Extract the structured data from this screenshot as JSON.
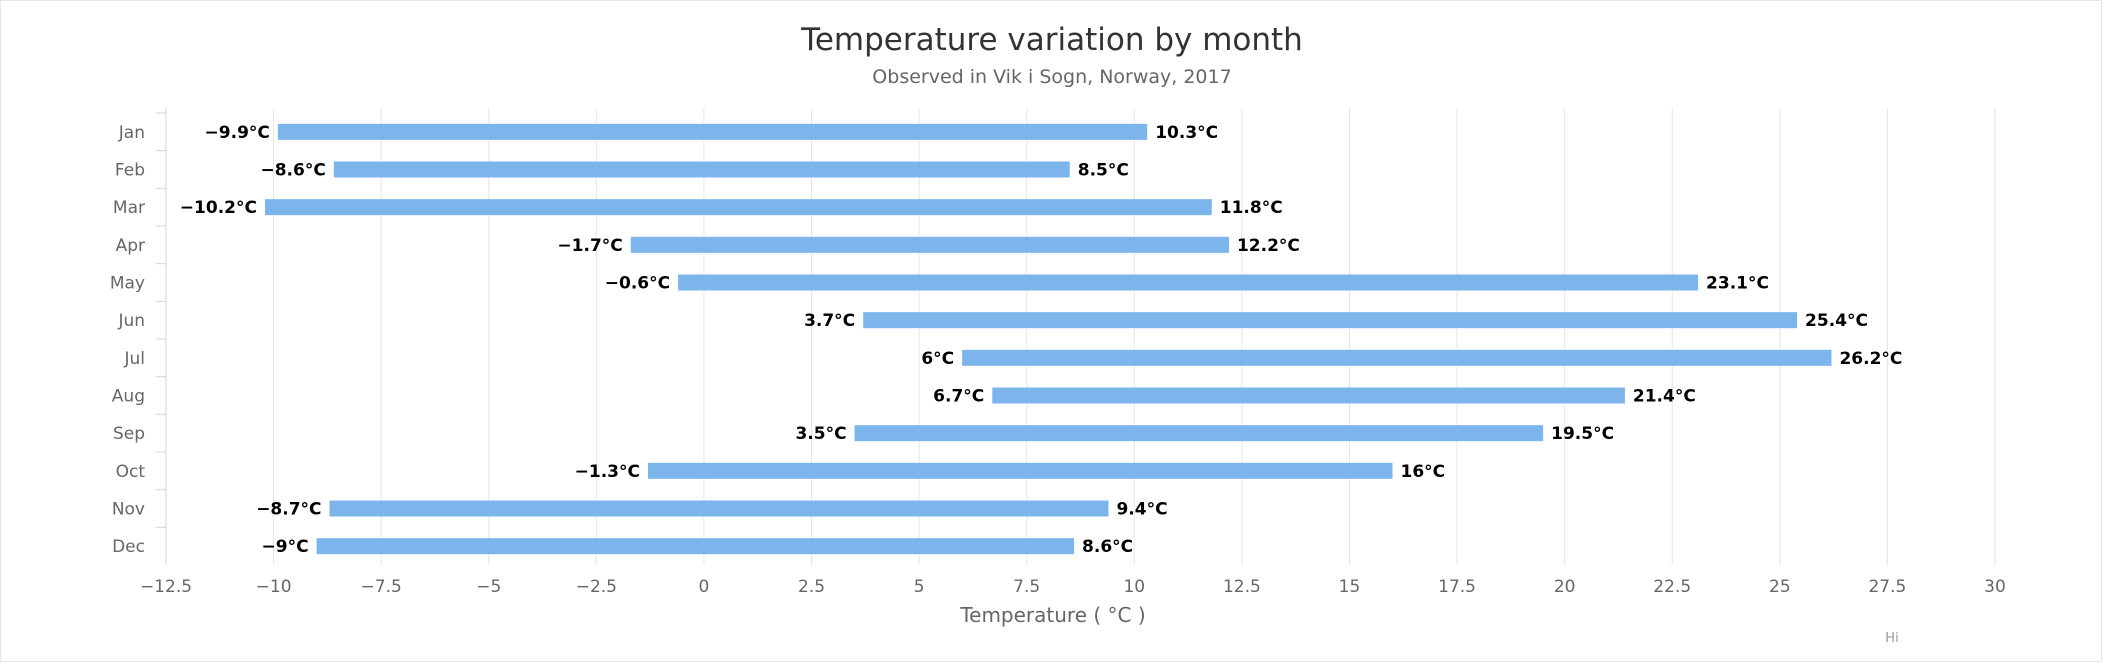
{
  "chart_data": {
    "type": "bar",
    "orientation": "horizontal",
    "series_style": "range",
    "title": "Temperature variation by month",
    "subtitle": "Observed in Vik i Sogn, Norway, 2017",
    "xlabel": "Temperature ( °C )",
    "ylabel": "",
    "categories": [
      "Jan",
      "Feb",
      "Mar",
      "Apr",
      "May",
      "Jun",
      "Jul",
      "Aug",
      "Sep",
      "Oct",
      "Nov",
      "Dec"
    ],
    "low": [
      -9.9,
      -8.6,
      -10.2,
      -1.7,
      -0.6,
      3.7,
      6,
      6.7,
      3.5,
      -1.3,
      -8.7,
      -9
    ],
    "high": [
      10.3,
      8.5,
      11.8,
      12.2,
      23.1,
      25.4,
      26.2,
      21.4,
      19.5,
      16,
      9.4,
      8.6
    ],
    "low_labels": [
      "−9.9°C",
      "−8.6°C",
      "−10.2°C",
      "−1.7°C",
      "−0.6°C",
      "3.7°C",
      "6°C",
      "6.7°C",
      "3.5°C",
      "−1.3°C",
      "−8.7°C",
      "−9°C"
    ],
    "high_labels": [
      "10.3°C",
      "8.5°C",
      "11.8°C",
      "12.2°C",
      "23.1°C",
      "25.4°C",
      "26.2°C",
      "21.4°C",
      "19.5°C",
      "16°C",
      "9.4°C",
      "8.6°C"
    ],
    "xlim": [
      -12.5,
      30
    ],
    "xticks": [
      -12.5,
      -10,
      -7.5,
      -5,
      -2.5,
      0,
      2.5,
      5,
      7.5,
      10,
      12.5,
      15,
      17.5,
      20,
      22.5,
      25,
      27.5,
      30
    ],
    "xtick_labels": [
      "−12.5",
      "−10",
      "−7.5",
      "−5",
      "−2.5",
      "0",
      "2.5",
      "5",
      "7.5",
      "10",
      "12.5",
      "15",
      "17.5",
      "20",
      "22.5",
      "25",
      "27.5",
      "30"
    ],
    "grid": true,
    "legend": "none",
    "colors": {
      "bar": "#7cb5ec",
      "grid": "#e6e6e6",
      "axis": "#ccd6eb"
    }
  },
  "credit_text": "Hi"
}
